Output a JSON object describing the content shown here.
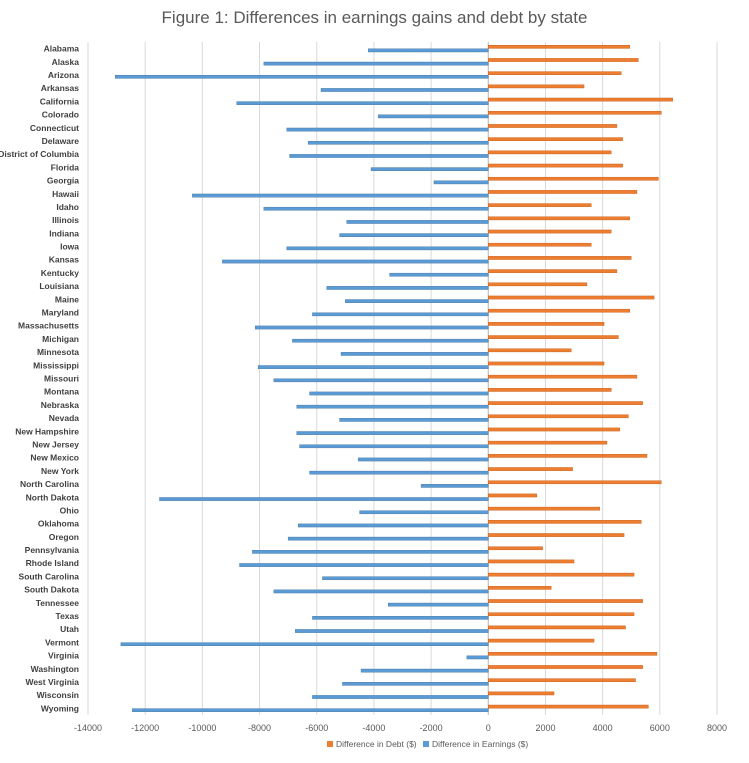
{
  "chart_data": {
    "type": "bar",
    "orientation": "horizontal",
    "title": "Figure 1: Differences in earnings gains and debt by state",
    "xlim": [
      -14000,
      8000
    ],
    "x_ticks": [
      -14000,
      -12000,
      -10000,
      -8000,
      -6000,
      -4000,
      -2000,
      0,
      2000,
      4000,
      6000,
      8000
    ],
    "grid": true,
    "legend_position": "bottom",
    "categories": [
      "Alabama",
      "Alaska",
      "Arizona",
      "Arkansas",
      "California",
      "Colorado",
      "Connecticut",
      "Delaware",
      "District of Columbia",
      "Florida",
      "Georgia",
      "Hawaii",
      "Idaho",
      "Illinois",
      "Indiana",
      "Iowa",
      "Kansas",
      "Kentucky",
      "Louisiana",
      "Maine",
      "Maryland",
      "Massachusetts",
      "Michigan",
      "Minnesota",
      "Mississippi",
      "Missouri",
      "Montana",
      "Nebraska",
      "Nevada",
      "New Hampshire",
      "New Jersey",
      "New Mexico",
      "New York",
      "North Carolina",
      "North Dakota",
      "Ohio",
      "Oklahoma",
      "Oregon",
      "Pennsylvania",
      "Rhode Island",
      "South Carolina",
      "South Dakota",
      "Tennessee",
      "Texas",
      "Utah",
      "Vermont",
      "Virginia",
      "Washington",
      "West Virginia",
      "Wisconsin",
      "Wyoming"
    ],
    "series": [
      {
        "name": "Difference in Debt ($)",
        "color": "#ED7D31",
        "values": [
          4950,
          5250,
          4650,
          3350,
          6450,
          6050,
          4500,
          4700,
          4300,
          4700,
          5950,
          5200,
          3600,
          4950,
          4300,
          3600,
          5000,
          4500,
          3450,
          5800,
          4950,
          4050,
          4550,
          2900,
          4050,
          5200,
          4300,
          5400,
          4900,
          4600,
          4150,
          5550,
          2950,
          6050,
          1700,
          3900,
          5350,
          4750,
          1900,
          3000,
          5100,
          2200,
          5400,
          5100,
          4800,
          3700,
          5900,
          5400,
          5150,
          2300,
          5600
        ]
      },
      {
        "name": "Difference in Earnings ($)",
        "color": "#5B9BD5",
        "values": [
          -4200,
          -7850,
          -13050,
          -5850,
          -8800,
          -3850,
          -7050,
          -6300,
          -6950,
          -4100,
          -1900,
          -10350,
          -7850,
          -4950,
          -5200,
          -7050,
          -9300,
          -3450,
          -5650,
          -5000,
          -6150,
          -8150,
          -6850,
          -5150,
          -8050,
          -7500,
          -6250,
          -6700,
          -5200,
          -6700,
          -6600,
          -4550,
          -6250,
          -2350,
          -11500,
          -4500,
          -6650,
          -7000,
          -8250,
          -8700,
          -5800,
          -7500,
          -3500,
          -6150,
          -6750,
          -12850,
          -750,
          -4450,
          -5100,
          -6150,
          -12450
        ]
      }
    ]
  }
}
